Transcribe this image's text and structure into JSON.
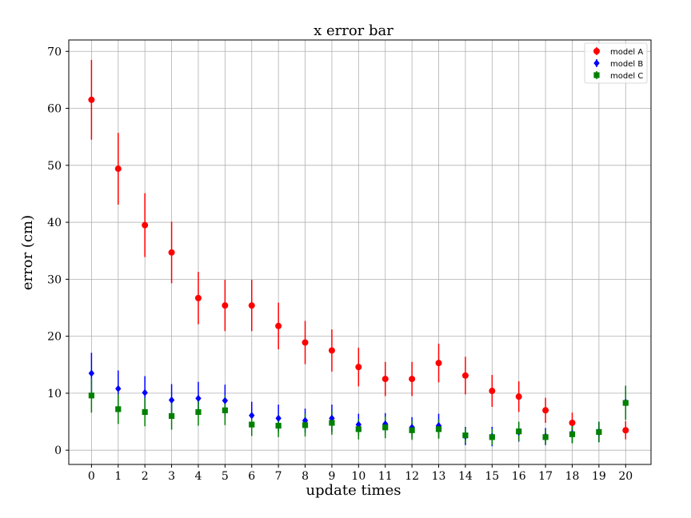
{
  "chart_data": {
    "type": "scatter",
    "title": "x error bar",
    "xlabel": "update times",
    "ylabel": "error (cm)",
    "x": [
      0,
      1,
      2,
      3,
      4,
      5,
      6,
      7,
      8,
      9,
      10,
      11,
      12,
      13,
      14,
      15,
      16,
      17,
      18,
      19,
      20
    ],
    "xlim": [
      -0.85,
      20.95
    ],
    "ylim": [
      -2.5,
      72
    ],
    "xticks": [
      0,
      1,
      2,
      3,
      4,
      5,
      6,
      7,
      8,
      9,
      10,
      11,
      12,
      13,
      14,
      15,
      16,
      17,
      18,
      19,
      20
    ],
    "yticks": [
      0,
      10,
      20,
      30,
      40,
      50,
      60,
      70
    ],
    "grid": true,
    "legend_position": "top-right",
    "series": [
      {
        "name": "model A",
        "color": "#ff0000",
        "marker": "circle",
        "values": [
          61.5,
          49.4,
          39.5,
          34.7,
          26.7,
          25.4,
          25.4,
          21.8,
          18.9,
          17.5,
          14.6,
          12.5,
          12.5,
          15.3,
          13.1,
          10.4,
          9.4,
          7.0,
          4.8,
          null,
          3.5
        ],
        "errors": [
          7.0,
          6.3,
          5.6,
          5.4,
          4.6,
          4.5,
          4.5,
          4.1,
          3.8,
          3.7,
          3.4,
          3.0,
          3.0,
          3.4,
          3.3,
          2.8,
          2.7,
          2.2,
          1.8,
          null,
          1.6
        ]
      },
      {
        "name": "model B",
        "color": "#0000ff",
        "marker": "diamond",
        "values": [
          13.5,
          10.8,
          10.1,
          8.8,
          9.1,
          8.7,
          6.1,
          5.6,
          5.2,
          5.6,
          4.5,
          4.6,
          4.0,
          4.3,
          2.5,
          2.4,
          3.2,
          2.4,
          2.9,
          3.2,
          8.4
        ],
        "errors": [
          3.6,
          3.2,
          2.9,
          2.8,
          2.9,
          2.8,
          2.4,
          2.4,
          2.1,
          2.4,
          1.9,
          1.9,
          1.8,
          2.1,
          1.6,
          1.7,
          1.7,
          1.5,
          1.6,
          1.8,
          2.9
        ]
      },
      {
        "name": "model C",
        "color": "#008000",
        "marker": "square",
        "values": [
          9.6,
          7.2,
          6.7,
          6.0,
          6.7,
          7.0,
          4.5,
          4.3,
          4.4,
          4.8,
          3.7,
          4.0,
          3.5,
          3.7,
          2.6,
          2.3,
          3.3,
          2.3,
          2.8,
          3.2,
          8.3
        ],
        "errors": [
          3.0,
          2.6,
          2.5,
          2.4,
          2.4,
          2.6,
          2.0,
          2.0,
          2.0,
          2.1,
          1.8,
          1.9,
          1.7,
          1.7,
          1.4,
          1.4,
          1.7,
          1.3,
          1.6,
          1.8,
          3.0
        ]
      }
    ]
  }
}
